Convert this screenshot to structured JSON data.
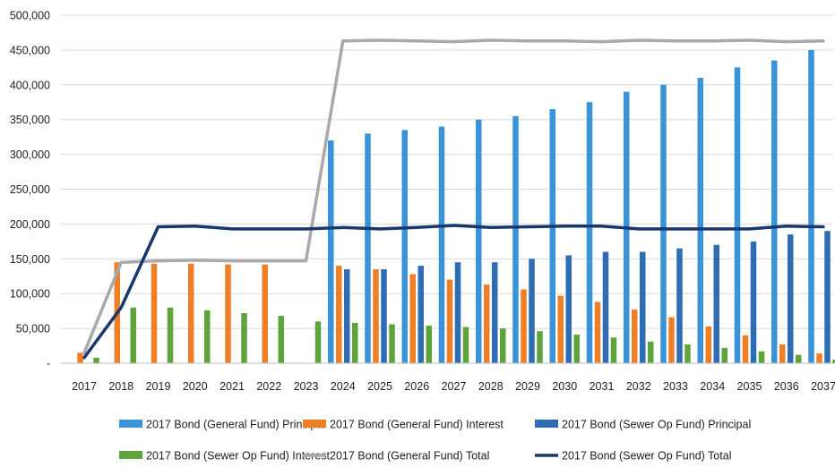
{
  "chart_data": {
    "type": "bar",
    "title": "",
    "xlabel": "",
    "ylabel": "",
    "ylim": [
      0,
      500000
    ],
    "yticks": [
      0,
      50000,
      100000,
      150000,
      200000,
      250000,
      300000,
      350000,
      400000,
      450000,
      500000
    ],
    "ytick_labels": [
      "-",
      "50,000",
      "100,000",
      "150,000",
      "200,000",
      "250,000",
      "300,000",
      "350,000",
      "400,000",
      "450,000",
      "500,000"
    ],
    "grid": true,
    "legend_position": "bottom",
    "categories": [
      "2017",
      "2018",
      "2019",
      "2020",
      "2021",
      "2022",
      "2023",
      "2024",
      "2025",
      "2026",
      "2027",
      "2028",
      "2029",
      "2030",
      "2031",
      "2032",
      "2033",
      "2034",
      "2035",
      "2036",
      "2037"
    ],
    "bar_series": [
      {
        "name": "2017 Bond (General Fund) Principal",
        "color": "#3a93d8",
        "values": [
          0,
          0,
          0,
          0,
          0,
          0,
          0,
          320000,
          330000,
          335000,
          340000,
          350000,
          355000,
          365000,
          375000,
          390000,
          400000,
          410000,
          425000,
          435000,
          450000
        ]
      },
      {
        "name": "2017 Bond (General Fund) Interest",
        "color": "#ef7f27",
        "values": [
          15000,
          145000,
          143000,
          143000,
          142000,
          142000,
          0,
          140000,
          135000,
          128000,
          120000,
          113000,
          106000,
          97000,
          88000,
          77000,
          66000,
          53000,
          40000,
          27000,
          14000
        ]
      },
      {
        "name": "2017 Bond (Sewer Op Fund) Principal",
        "color": "#2e6db3",
        "values": [
          0,
          0,
          0,
          0,
          0,
          0,
          0,
          135000,
          135000,
          140000,
          145000,
          145000,
          150000,
          155000,
          160000,
          160000,
          165000,
          170000,
          175000,
          185000,
          190000
        ]
      },
      {
        "name": "2017 Bond (Sewer Op Fund) Interest",
        "color": "#5ea33c",
        "values": [
          8000,
          80000,
          80000,
          76000,
          72000,
          68000,
          60000,
          58000,
          56000,
          54000,
          52000,
          50000,
          46000,
          41000,
          37000,
          31000,
          27000,
          22000,
          17000,
          12000,
          5000
        ]
      }
    ],
    "line_series": [
      {
        "name": "2017 Bond (General Fund) Total",
        "color": "#a7a9ac",
        "values": [
          15000,
          145000,
          147000,
          148000,
          147000,
          147000,
          147000,
          463000,
          464000,
          463000,
          462000,
          464000,
          463000,
          463000,
          462000,
          464000,
          463000,
          463000,
          464000,
          462000,
          463000
        ]
      },
      {
        "name": "2017 Bond (Sewer Op Fund) Total",
        "color": "#16386e",
        "values": [
          8000,
          80000,
          196000,
          197000,
          193000,
          193000,
          193000,
          195000,
          193000,
          195000,
          198000,
          195000,
          196000,
          197000,
          197000,
          193000,
          193000,
          193000,
          193000,
          197000,
          196000
        ]
      }
    ]
  }
}
